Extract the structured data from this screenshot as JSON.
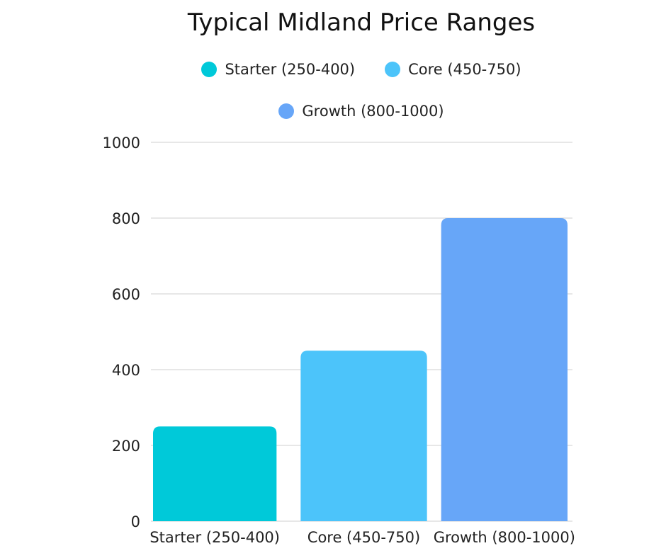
{
  "chart_data": {
    "type": "bar",
    "title": "Typical Midland Price Ranges",
    "categories": [
      "Starter (250-400)",
      "Core (450-750)",
      "Growth (800-1000)"
    ],
    "values": [
      250,
      450,
      800
    ],
    "colors": [
      "#00C9D9",
      "#4CC4FA",
      "#67A6F8"
    ],
    "legend": [
      {
        "label": "Starter (250-400)",
        "color": "#00C9D9"
      },
      {
        "label": "Core (450-750)",
        "color": "#4CC4FA"
      },
      {
        "label": "Growth (800-1000)",
        "color": "#67A6F8"
      }
    ],
    "legend_position": "top",
    "xlabel": "",
    "ylabel": "",
    "ylim": [
      0,
      1000
    ],
    "yticks": [
      0,
      200,
      400,
      600,
      800,
      1000
    ],
    "grid": true
  }
}
